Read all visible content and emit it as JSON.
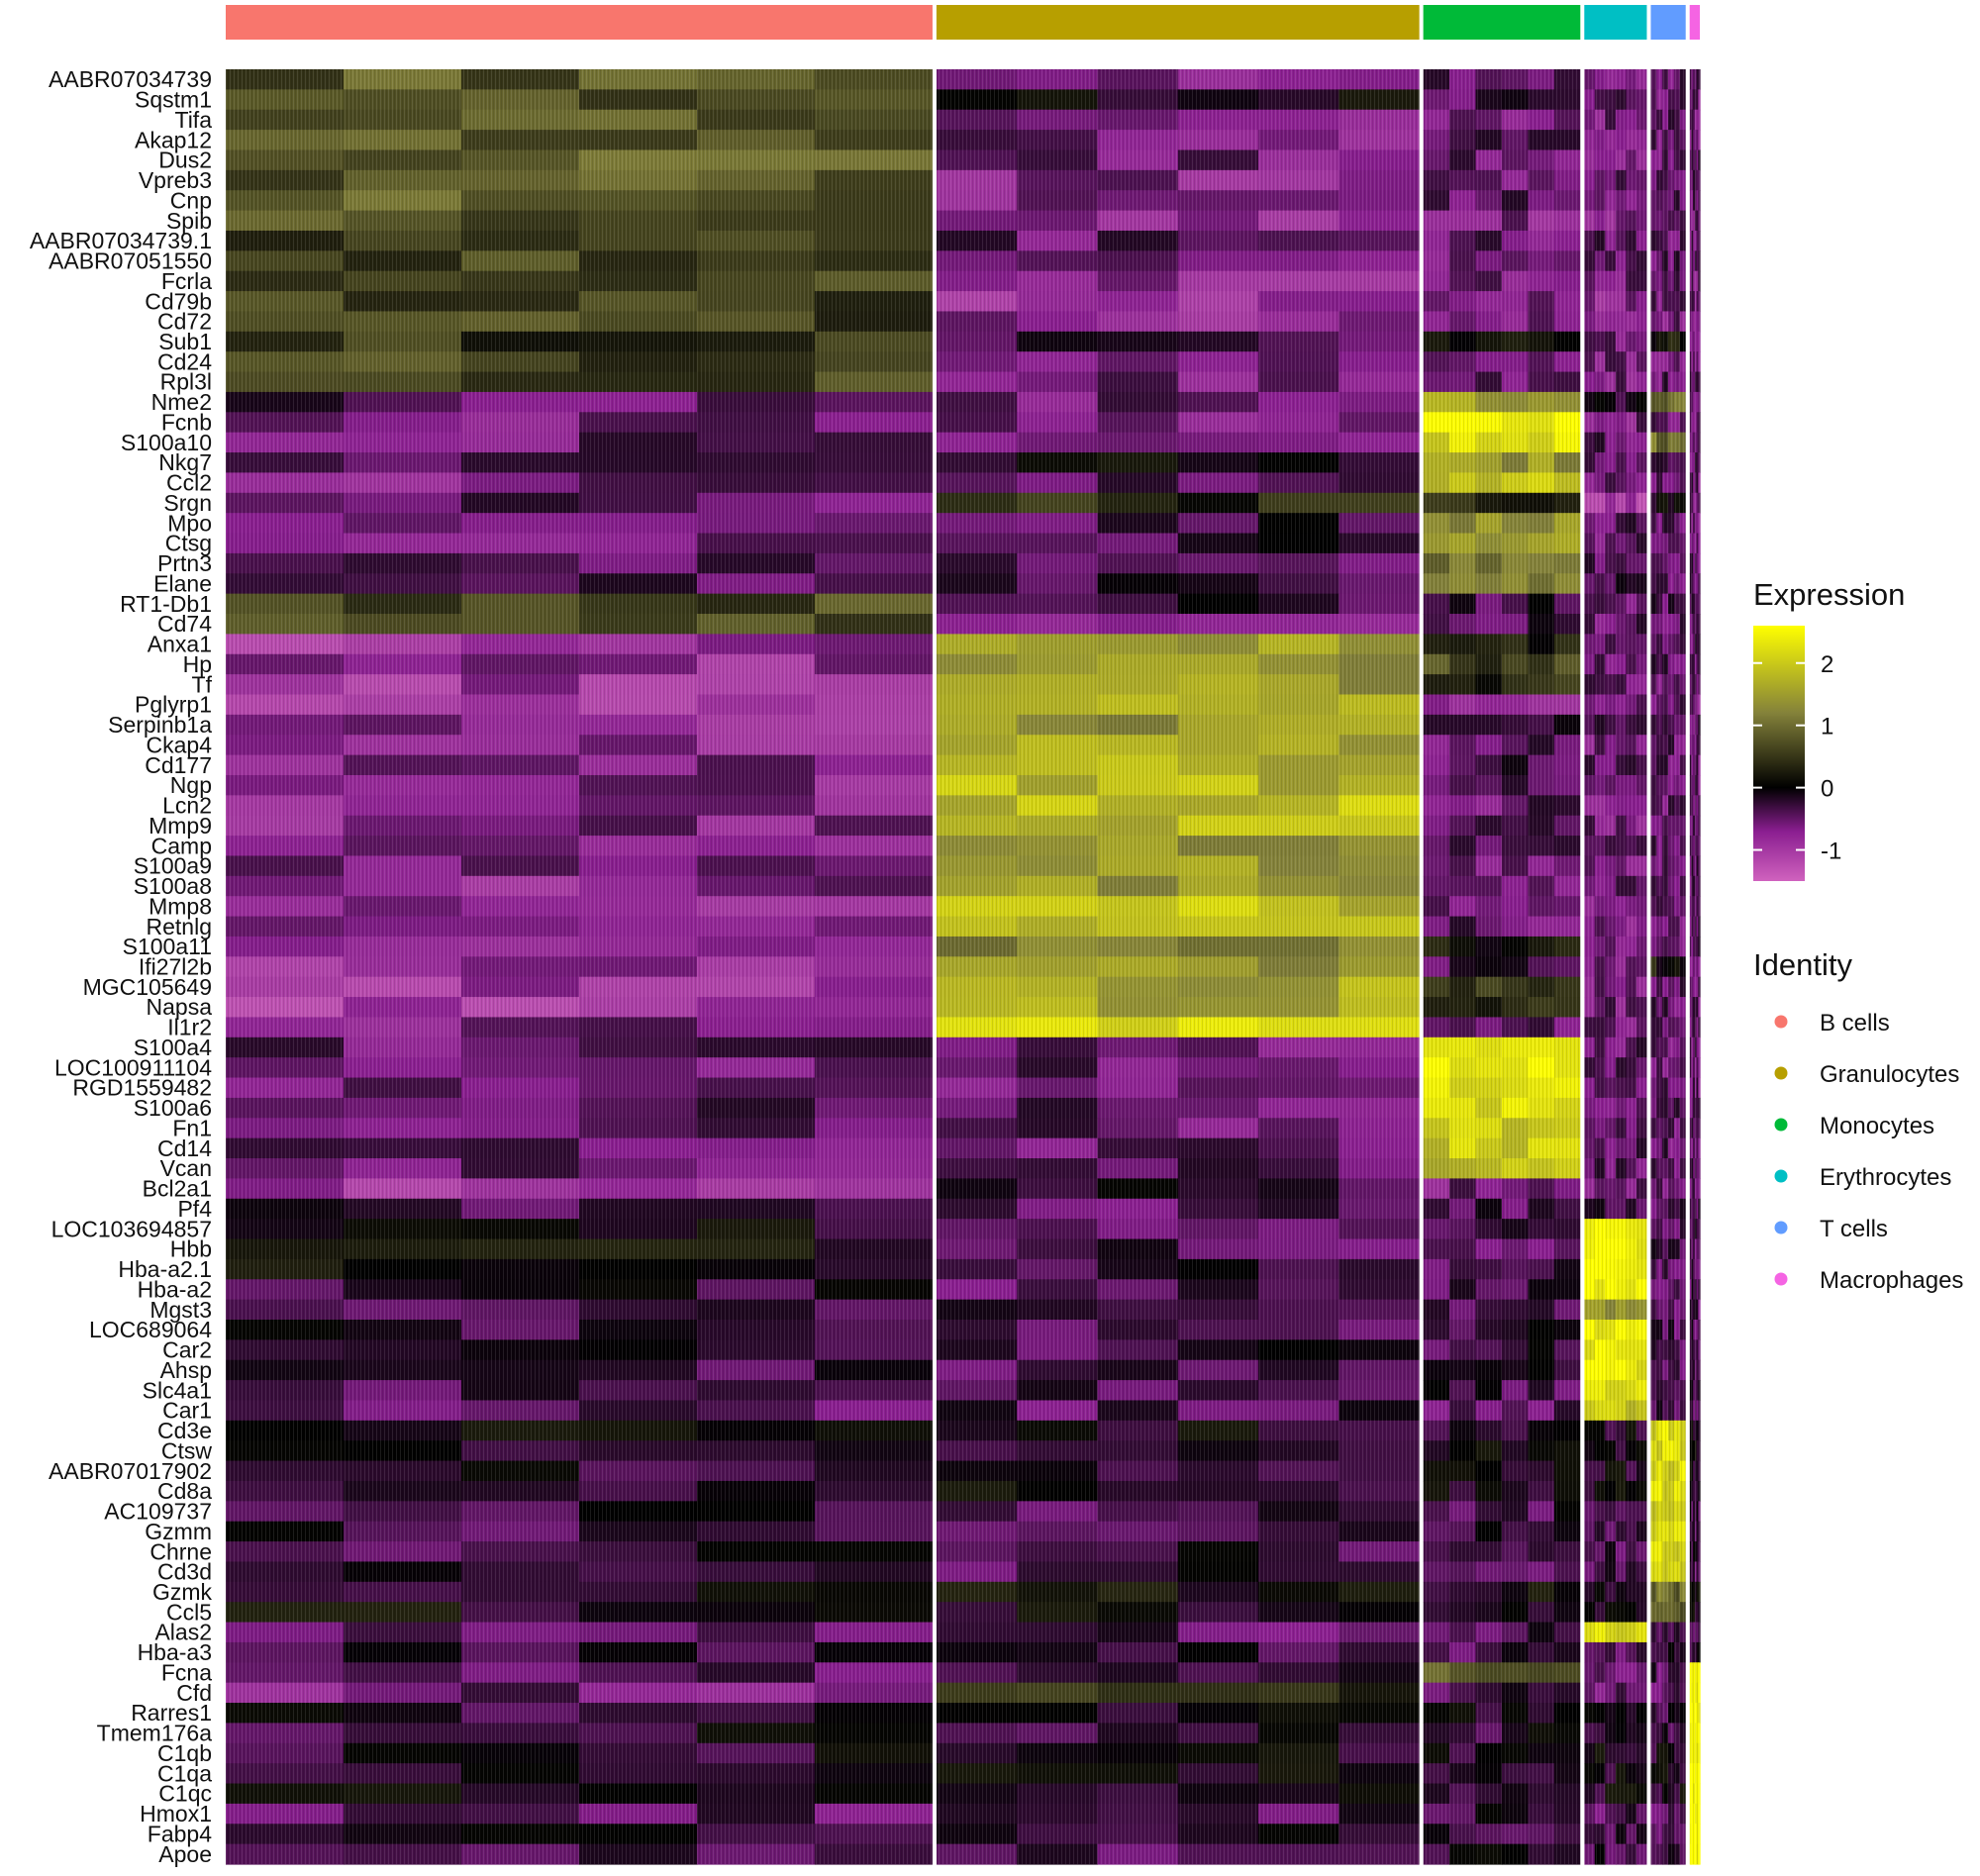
{
  "chart_data": {
    "type": "heatmap",
    "title": "",
    "xlabel": "",
    "ylabel": "",
    "genes": [
      "AABR07034739",
      "Sqstm1",
      "Tifa",
      "Akap12",
      "Dus2",
      "Vpreb3",
      "Cnp",
      "Spib",
      "AABR07034739.1",
      "AABR07051550",
      "Fcrla",
      "Cd79b",
      "Cd72",
      "Sub1",
      "Cd24",
      "Rpl3l",
      "Nme2",
      "Fcnb",
      "S100a10",
      "Nkg7",
      "Ccl2",
      "Srgn",
      "Mpo",
      "Ctsg",
      "Prtn3",
      "Elane",
      "RT1-Db1",
      "Cd74",
      "Anxa1",
      "Hp",
      "Tf",
      "Pglyrp1",
      "Serpinb1a",
      "Ckap4",
      "Cd177",
      "Ngp",
      "Lcn2",
      "Mmp9",
      "Camp",
      "S100a9",
      "S100a8",
      "Mmp8",
      "Retnlg",
      "S100a11",
      "Ifi27l2b",
      "MGC105649",
      "Napsa",
      "Il1r2",
      "S100a4",
      "LOC100911104",
      "RGD1559482",
      "S100a6",
      "Fn1",
      "Cd14",
      "Vcan",
      "Bcl2a1",
      "Pf4",
      "LOC103694857",
      "Hbb",
      "Hba-a2.1",
      "Hba-a2",
      "Mgst3",
      "LOC689064",
      "Car2",
      "Ahsp",
      "Slc4a1",
      "Car1",
      "Cd3e",
      "Ctsw",
      "AABR07017902",
      "Cd8a",
      "AC109737",
      "Gzmm",
      "Chrne",
      "Cd3d",
      "Gzmk",
      "Ccl5",
      "Alas2",
      "Hba-a3",
      "Fcna",
      "Cfd",
      "Rarres1",
      "Tmem176a",
      "C1qb",
      "C1qa",
      "C1qc",
      "Hmox1",
      "Fabp4",
      "Apoe"
    ],
    "groups": [
      {
        "name": "B cells",
        "color": "#F8766D",
        "size": 0.486
      },
      {
        "name": "Granulocytes",
        "color": "#B79F00",
        "size": 0.332
      },
      {
        "name": "Monocytes",
        "color": "#00BA38",
        "size": 0.108
      },
      {
        "name": "Erythrocytes",
        "color": "#00BFC4",
        "size": 0.043
      },
      {
        "name": "T cells",
        "color": "#619CFF",
        "size": 0.024
      },
      {
        "name": "Macrophages",
        "color": "#F564E3",
        "size": 0.007
      }
    ],
    "mean_expression": [
      [
        0.8,
        -0.6,
        -0.4,
        -0.7,
        -0.5,
        -0.5
      ],
      [
        0.8,
        0.0,
        -0.4,
        -0.5,
        -0.5,
        -0.5
      ],
      [
        0.8,
        -0.6,
        -0.5,
        -0.6,
        -0.5,
        -0.5
      ],
      [
        0.8,
        -0.6,
        -0.5,
        -0.6,
        -0.5,
        -0.5
      ],
      [
        0.8,
        -0.6,
        -0.5,
        -0.6,
        -0.5,
        -0.5
      ],
      [
        0.8,
        -0.7,
        -0.6,
        -0.6,
        -0.5,
        -0.5
      ],
      [
        0.8,
        -0.6,
        -0.5,
        -0.6,
        -0.5,
        -0.5
      ],
      [
        0.7,
        -0.8,
        -0.7,
        -0.7,
        -0.6,
        -0.6
      ],
      [
        0.6,
        -0.5,
        -0.5,
        -0.5,
        -0.5,
        -0.5
      ],
      [
        0.6,
        -0.5,
        -0.5,
        -0.5,
        -0.5,
        -0.5
      ],
      [
        0.7,
        -0.7,
        -0.6,
        -0.6,
        -0.6,
        -0.6
      ],
      [
        0.6,
        -0.8,
        -0.7,
        -0.7,
        -0.6,
        -0.6
      ],
      [
        0.6,
        -0.8,
        -0.7,
        -0.7,
        -0.6,
        -0.6
      ],
      [
        0.4,
        -0.3,
        0.2,
        -0.5,
        0.2,
        -0.5
      ],
      [
        0.6,
        -0.7,
        -0.5,
        -0.6,
        -0.6,
        -0.6
      ],
      [
        0.6,
        -0.6,
        -0.5,
        -0.6,
        -0.5,
        -0.5
      ],
      [
        -0.4,
        -0.5,
        1.5,
        -0.3,
        1.0,
        -0.5
      ],
      [
        -0.6,
        -0.6,
        2.5,
        -0.6,
        -0.5,
        -0.5
      ],
      [
        -0.5,
        -0.5,
        2.3,
        -0.5,
        1.0,
        -0.5
      ],
      [
        -0.5,
        -0.1,
        1.4,
        -0.5,
        -0.3,
        -0.5
      ],
      [
        -0.6,
        -0.5,
        2.0,
        -0.6,
        -0.5,
        -0.5
      ],
      [
        -0.4,
        0.3,
        0.4,
        -1.0,
        0.0,
        -0.6
      ],
      [
        -0.5,
        -0.3,
        1.4,
        -0.5,
        -0.5,
        -0.5
      ],
      [
        -0.5,
        -0.3,
        1.6,
        -0.5,
        -0.5,
        -0.5
      ],
      [
        -0.4,
        -0.4,
        1.2,
        -0.4,
        -0.4,
        -0.4
      ],
      [
        -0.4,
        -0.3,
        1.0,
        -0.4,
        -0.4,
        -0.4
      ],
      [
        0.7,
        -0.3,
        -0.3,
        -0.5,
        -0.4,
        -0.5
      ],
      [
        0.6,
        -0.5,
        -0.4,
        -0.5,
        -0.5,
        -0.5
      ],
      [
        -0.9,
        1.5,
        0.1,
        -0.5,
        -0.3,
        -0.5
      ],
      [
        -0.8,
        1.4,
        0.6,
        -0.5,
        -0.5,
        -0.5
      ],
      [
        -0.9,
        1.5,
        0.4,
        -0.5,
        -0.5,
        -0.5
      ],
      [
        -0.9,
        1.6,
        -0.7,
        -0.6,
        -0.5,
        -0.6
      ],
      [
        -0.8,
        1.4,
        0.0,
        -0.5,
        -0.5,
        -0.5
      ],
      [
        -0.8,
        1.7,
        -0.5,
        -0.6,
        -0.5,
        -0.5
      ],
      [
        -0.7,
        1.7,
        -0.4,
        -0.5,
        -0.5,
        -0.5
      ],
      [
        -0.7,
        1.8,
        -0.5,
        -0.6,
        -0.5,
        -0.5
      ],
      [
        -0.7,
        1.9,
        -0.5,
        -0.6,
        -0.5,
        -0.5
      ],
      [
        -0.7,
        1.8,
        -0.5,
        -0.6,
        -0.5,
        -0.5
      ],
      [
        -0.7,
        1.3,
        -0.5,
        -0.6,
        -0.5,
        -0.5
      ],
      [
        -0.7,
        1.5,
        -0.5,
        -0.6,
        -0.5,
        -0.5
      ],
      [
        -0.7,
        1.5,
        -0.5,
        -0.6,
        -0.5,
        -0.5
      ],
      [
        -0.7,
        1.9,
        -0.5,
        -0.6,
        -0.5,
        -0.5
      ],
      [
        -0.7,
        1.8,
        -0.5,
        -0.6,
        -0.5,
        -0.5
      ],
      [
        -0.9,
        1.1,
        0.2,
        -0.6,
        -0.5,
        -0.5
      ],
      [
        -0.9,
        1.4,
        -0.4,
        -0.6,
        0.2,
        -0.6
      ],
      [
        -0.9,
        1.6,
        0.4,
        -0.6,
        -0.5,
        -0.5
      ],
      [
        -1.0,
        1.6,
        0.3,
        -0.6,
        -0.5,
        -0.5
      ],
      [
        -0.6,
        2.3,
        -0.5,
        -0.6,
        -0.5,
        -0.5
      ],
      [
        -0.5,
        -0.5,
        2.4,
        -0.5,
        -0.5,
        -0.5
      ],
      [
        -0.5,
        -0.5,
        2.4,
        -0.5,
        -0.5,
        -0.5
      ],
      [
        -0.5,
        -0.5,
        2.4,
        -0.5,
        -0.5,
        -0.5
      ],
      [
        -0.5,
        -0.5,
        2.3,
        -0.5,
        -0.5,
        -0.5
      ],
      [
        -0.5,
        -0.5,
        2.1,
        -0.5,
        -0.5,
        -0.5
      ],
      [
        -0.5,
        -0.5,
        2.0,
        -0.5,
        -0.5,
        -0.5
      ],
      [
        -0.5,
        -0.5,
        1.9,
        -0.5,
        -0.5,
        -0.5
      ],
      [
        -0.9,
        -0.2,
        -0.6,
        -0.6,
        -0.5,
        -0.5
      ],
      [
        -0.4,
        -0.4,
        -0.4,
        -0.4,
        -0.4,
        -0.4
      ],
      [
        -0.1,
        -0.4,
        -0.4,
        2.6,
        -0.4,
        -0.4
      ],
      [
        0.1,
        -0.4,
        -0.4,
        2.6,
        -0.4,
        -0.4
      ],
      [
        0.1,
        -0.3,
        -0.4,
        2.6,
        -0.4,
        -0.4
      ],
      [
        -0.2,
        -0.4,
        -0.4,
        2.6,
        -0.4,
        -0.4
      ],
      [
        -0.4,
        -0.4,
        -0.4,
        1.5,
        -0.4,
        -0.4
      ],
      [
        -0.3,
        -0.3,
        -0.3,
        2.4,
        -0.4,
        -0.4
      ],
      [
        -0.3,
        -0.3,
        -0.3,
        2.4,
        -0.4,
        -0.4
      ],
      [
        -0.3,
        -0.3,
        -0.3,
        2.4,
        -0.4,
        -0.4
      ],
      [
        -0.4,
        -0.4,
        -0.3,
        2.3,
        -0.4,
        -0.4
      ],
      [
        -0.4,
        -0.4,
        -0.4,
        2.0,
        -0.4,
        -0.4
      ],
      [
        -0.1,
        -0.1,
        -0.1,
        -0.1,
        2.2,
        -0.1
      ],
      [
        -0.1,
        -0.1,
        -0.1,
        -0.1,
        2.2,
        -0.1
      ],
      [
        -0.1,
        -0.1,
        -0.1,
        -0.1,
        2.2,
        -0.1
      ],
      [
        -0.1,
        -0.1,
        -0.1,
        -0.1,
        2.2,
        -0.1
      ],
      [
        -0.3,
        -0.3,
        -0.3,
        -0.3,
        2.2,
        -0.3
      ],
      [
        -0.3,
        -0.3,
        -0.3,
        -0.3,
        2.1,
        -0.3
      ],
      [
        -0.3,
        -0.3,
        -0.3,
        -0.3,
        2.2,
        -0.3
      ],
      [
        -0.3,
        -0.3,
        -0.3,
        -0.3,
        2.2,
        -0.3
      ],
      [
        0.0,
        0.0,
        0.0,
        0.0,
        1.0,
        0.0
      ],
      [
        0.0,
        0.0,
        0.0,
        -0.1,
        1.0,
        0.0
      ],
      [
        -0.4,
        -0.4,
        -0.4,
        2.3,
        -0.4,
        -0.4
      ],
      [
        -0.3,
        -0.3,
        -0.3,
        -0.3,
        -0.3,
        -0.3
      ],
      [
        -0.4,
        -0.3,
        0.8,
        -0.4,
        -0.4,
        2.6
      ],
      [
        -0.6,
        0.3,
        -0.4,
        -0.5,
        -0.5,
        2.6
      ],
      [
        -0.2,
        -0.2,
        -0.2,
        -0.2,
        -0.2,
        2.6
      ],
      [
        -0.2,
        -0.2,
        -0.2,
        -0.2,
        -0.2,
        2.6
      ],
      [
        -0.1,
        -0.1,
        -0.1,
        -0.1,
        -0.1,
        2.6
      ],
      [
        -0.1,
        -0.1,
        -0.1,
        -0.1,
        -0.1,
        2.6
      ],
      [
        -0.1,
        -0.1,
        -0.1,
        -0.1,
        -0.1,
        2.6
      ],
      [
        -0.5,
        -0.4,
        -0.3,
        -0.4,
        -0.4,
        2.6
      ],
      [
        -0.3,
        -0.3,
        -0.3,
        -0.3,
        -0.3,
        2.6
      ],
      [
        -0.3,
        -0.3,
        -0.2,
        -0.3,
        -0.3,
        2.6
      ]
    ],
    "color_scale": {
      "title": "Expression",
      "stops": [
        {
          "value": -1.5,
          "color": "#D062BE"
        },
        {
          "value": -0.7,
          "color": "#8A1E90"
        },
        {
          "value": 0,
          "color": "#000000"
        },
        {
          "value": 1.2,
          "color": "#84823A"
        },
        {
          "value": 2.6,
          "color": "#FFFF00"
        }
      ],
      "range": [
        -1.5,
        2.6
      ],
      "ticks": [
        2,
        1,
        0,
        -1
      ],
      "tick_labels": [
        "2",
        "1",
        "0",
        "-1"
      ]
    },
    "legend": {
      "title": "Identity",
      "entries": [
        "B cells",
        "Granulocytes",
        "Monocytes",
        "Erythrocytes",
        "T cells",
        "Macrophages"
      ],
      "colors": [
        "#F8766D",
        "#B79F00",
        "#00BA38",
        "#00BFC4",
        "#619CFF",
        "#F564E3"
      ]
    }
  }
}
